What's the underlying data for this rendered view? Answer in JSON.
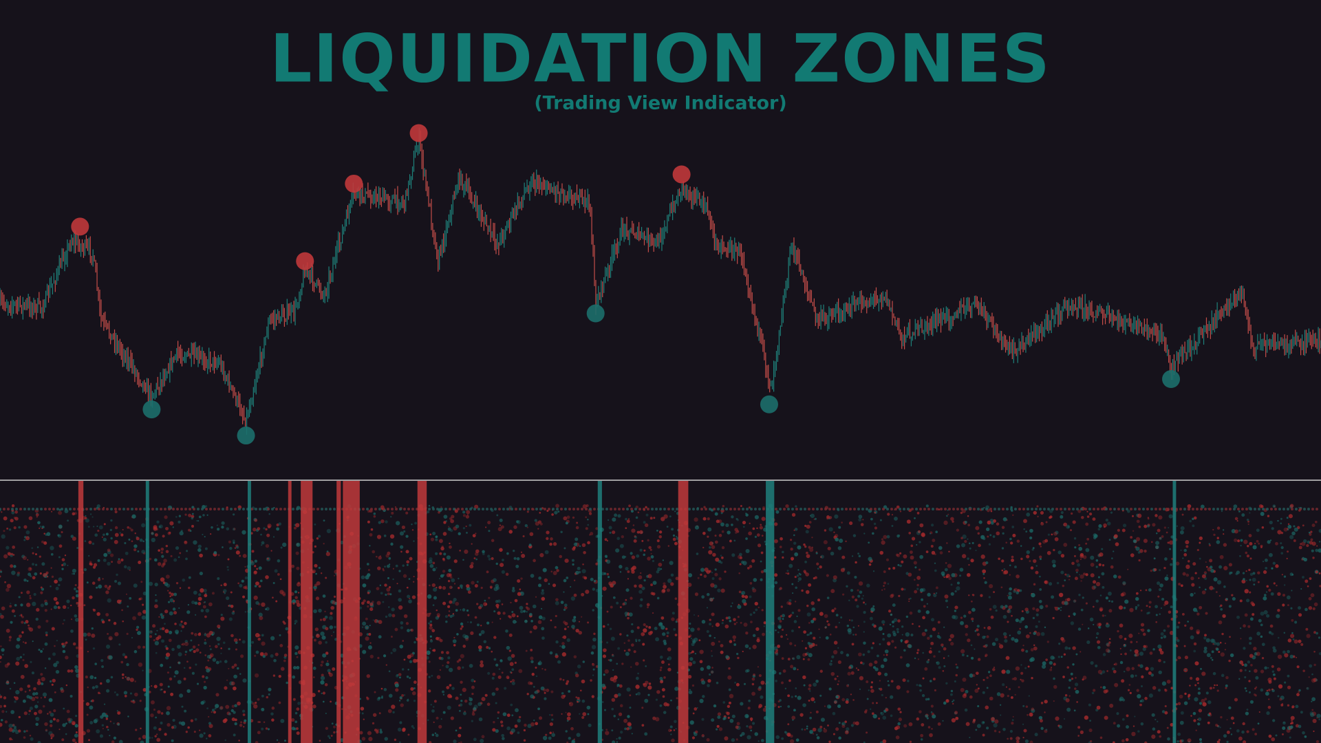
{
  "header": {
    "title": "LIQUIDATION ZONES",
    "subtitle": "(Trading View Indicator)"
  }
}
